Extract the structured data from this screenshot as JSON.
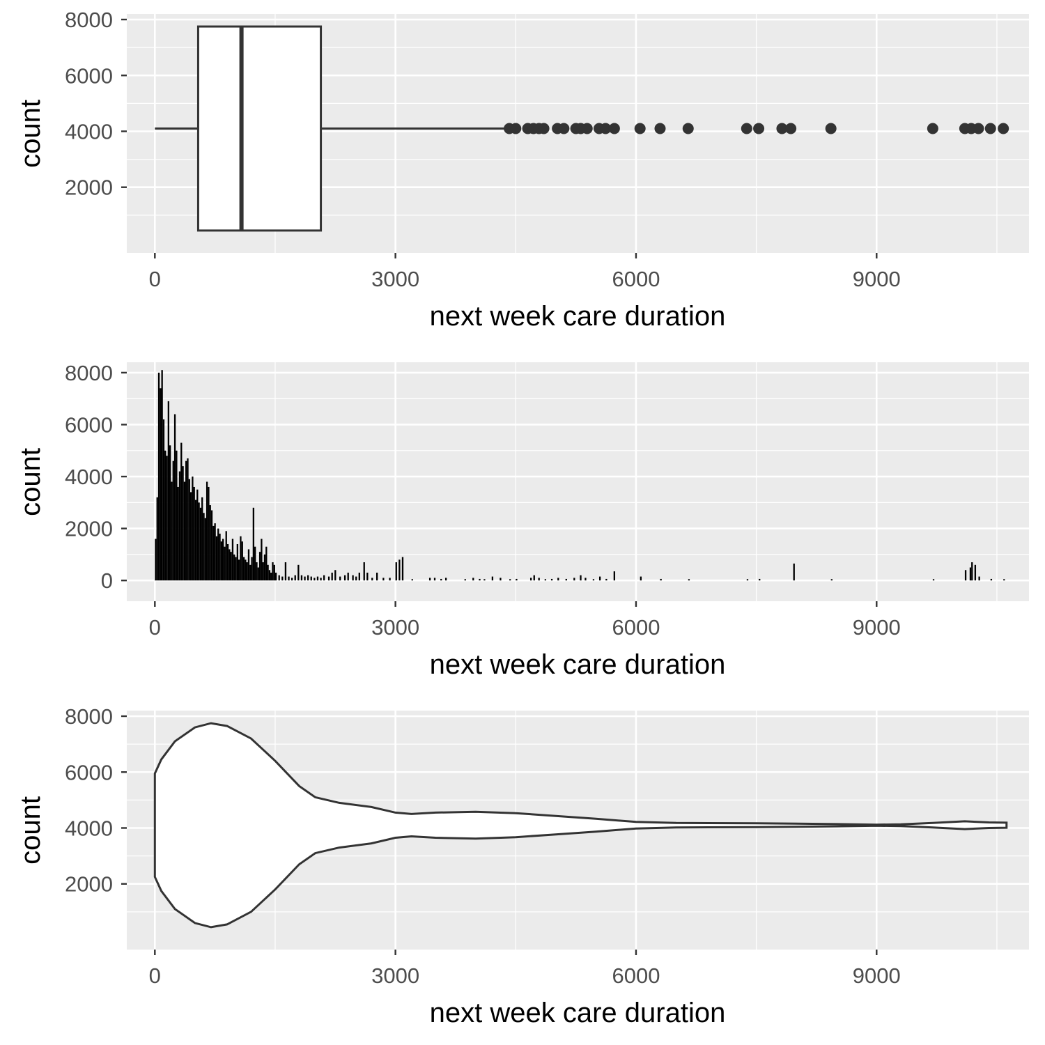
{
  "chart_data": [
    {
      "type": "boxplot",
      "xlabel": "next week care duration",
      "ylabel": "count",
      "xlim": [
        -350,
        10900
      ],
      "ylim": [
        0,
        8000
      ],
      "x_ticks": [
        0,
        3000,
        6000,
        9000
      ],
      "y_ticks": [
        2000,
        4000,
        6000,
        8000
      ],
      "grid": true,
      "box": {
        "lower_whisker": 0,
        "q1": 540,
        "median": 1080,
        "q3": 2070,
        "upper_whisker": 4380,
        "y_center": 4100,
        "y_bottom": 450,
        "y_top": 7750
      },
      "outliers": [
        4420,
        4500,
        4650,
        4720,
        4790,
        4850,
        5020,
        5100,
        5250,
        5310,
        5390,
        5540,
        5620,
        5730,
        6050,
        6300,
        6650,
        7380,
        7530,
        7820,
        7930,
        8430,
        9700,
        10100,
        10180,
        10270,
        10420,
        10580
      ]
    },
    {
      "type": "bar",
      "xlabel": "next week care duration",
      "ylabel": "count",
      "xlim": [
        -350,
        10900
      ],
      "ylim": [
        0,
        8000
      ],
      "x_ticks": [
        0,
        3000,
        6000,
        9000
      ],
      "y_ticks": [
        0,
        2000,
        4000,
        6000,
        8000
      ],
      "grid": true,
      "bins": [
        [
          0,
          1600
        ],
        [
          20,
          3200
        ],
        [
          40,
          8000
        ],
        [
          60,
          7400
        ],
        [
          80,
          8100
        ],
        [
          100,
          6200
        ],
        [
          120,
          5000
        ],
        [
          140,
          4800
        ],
        [
          160,
          6900
        ],
        [
          180,
          5200
        ],
        [
          200,
          3800
        ],
        [
          220,
          4600
        ],
        [
          240,
          6400
        ],
        [
          260,
          5000
        ],
        [
          280,
          3600
        ],
        [
          300,
          4200
        ],
        [
          320,
          5300
        ],
        [
          340,
          4400
        ],
        [
          360,
          3800
        ],
        [
          380,
          4600
        ],
        [
          400,
          4700
        ],
        [
          420,
          3900
        ],
        [
          440,
          3400
        ],
        [
          460,
          4000
        ],
        [
          480,
          3600
        ],
        [
          500,
          3100
        ],
        [
          520,
          3500
        ],
        [
          540,
          3000
        ],
        [
          560,
          2800
        ],
        [
          580,
          3200
        ],
        [
          600,
          2600
        ],
        [
          620,
          2400
        ],
        [
          640,
          3800
        ],
        [
          660,
          3600
        ],
        [
          680,
          2900
        ],
        [
          700,
          2700
        ],
        [
          720,
          2100
        ],
        [
          740,
          2200
        ],
        [
          760,
          1700
        ],
        [
          780,
          2000
        ],
        [
          800,
          1800
        ],
        [
          820,
          1500
        ],
        [
          840,
          1600
        ],
        [
          860,
          1300
        ],
        [
          880,
          1900
        ],
        [
          900,
          1400
        ],
        [
          920,
          1200
        ],
        [
          940,
          1100
        ],
        [
          960,
          1600
        ],
        [
          980,
          1000
        ],
        [
          1000,
          900
        ],
        [
          1020,
          1400
        ],
        [
          1040,
          800
        ],
        [
          1060,
          1700
        ],
        [
          1080,
          1500
        ],
        [
          1100,
          900
        ],
        [
          1120,
          800
        ],
        [
          1140,
          700
        ],
        [
          1160,
          1200
        ],
        [
          1180,
          600
        ],
        [
          1200,
          900
        ],
        [
          1220,
          2800
        ],
        [
          1240,
          1300
        ],
        [
          1260,
          700
        ],
        [
          1280,
          500
        ],
        [
          1300,
          1100
        ],
        [
          1320,
          1600
        ],
        [
          1340,
          700
        ],
        [
          1360,
          1000
        ],
        [
          1380,
          1300
        ],
        [
          1400,
          600
        ],
        [
          1420,
          400
        ],
        [
          1440,
          300
        ],
        [
          1460,
          700
        ],
        [
          1480,
          600
        ],
        [
          1500,
          300
        ],
        [
          1540,
          200
        ],
        [
          1580,
          150
        ],
        [
          1620,
          700
        ],
        [
          1660,
          150
        ],
        [
          1700,
          100
        ],
        [
          1740,
          200
        ],
        [
          1780,
          600
        ],
        [
          1820,
          200
        ],
        [
          1860,
          150
        ],
        [
          1900,
          200
        ],
        [
          1940,
          150
        ],
        [
          1980,
          100
        ],
        [
          2020,
          150
        ],
        [
          2060,
          100
        ],
        [
          2100,
          200
        ],
        [
          2160,
          150
        ],
        [
          2200,
          300
        ],
        [
          2240,
          400
        ],
        [
          2300,
          150
        ],
        [
          2360,
          200
        ],
        [
          2400,
          300
        ],
        [
          2460,
          200
        ],
        [
          2500,
          150
        ],
        [
          2540,
          300
        ],
        [
          2600,
          700
        ],
        [
          2640,
          300
        ],
        [
          2700,
          100
        ],
        [
          2760,
          300
        ],
        [
          2840,
          100
        ],
        [
          2920,
          100
        ],
        [
          3000,
          700
        ],
        [
          3040,
          800
        ],
        [
          3080,
          900
        ],
        [
          3200,
          50
        ],
        [
          3420,
          100
        ],
        [
          3480,
          100
        ],
        [
          3560,
          60
        ],
        [
          3620,
          100
        ],
        [
          3860,
          50
        ],
        [
          3960,
          100
        ],
        [
          4040,
          60
        ],
        [
          4100,
          50
        ],
        [
          4200,
          150
        ],
        [
          4300,
          100
        ],
        [
          4420,
          50
        ],
        [
          4500,
          60
        ],
        [
          4680,
          100
        ],
        [
          4720,
          200
        ],
        [
          4780,
          100
        ],
        [
          4860,
          50
        ],
        [
          4940,
          60
        ],
        [
          5020,
          100
        ],
        [
          5120,
          60
        ],
        [
          5220,
          100
        ],
        [
          5300,
          200
        ],
        [
          5360,
          100
        ],
        [
          5460,
          50
        ],
        [
          5540,
          150
        ],
        [
          5620,
          60
        ],
        [
          5720,
          350
        ],
        [
          6050,
          150
        ],
        [
          6300,
          60
        ],
        [
          6650,
          50
        ],
        [
          7380,
          50
        ],
        [
          7530,
          60
        ],
        [
          7960,
          650
        ],
        [
          8430,
          50
        ],
        [
          9700,
          50
        ],
        [
          10100,
          400
        ],
        [
          10160,
          500
        ],
        [
          10180,
          700
        ],
        [
          10220,
          600
        ],
        [
          10270,
          150
        ],
        [
          10420,
          60
        ],
        [
          10580,
          50
        ]
      ]
    },
    {
      "type": "violin",
      "xlabel": "next week care duration",
      "ylabel": "count",
      "xlim": [
        -350,
        10900
      ],
      "ylim": [
        0,
        8000
      ],
      "x_ticks": [
        0,
        3000,
        6000,
        9000
      ],
      "y_ticks": [
        2000,
        4000,
        6000,
        8000
      ],
      "grid": true,
      "y_center": 4100,
      "x_min": 0,
      "x_max": 10620,
      "half_width": [
        [
          0,
          1850
        ],
        [
          80,
          2350
        ],
        [
          250,
          3000
        ],
        [
          500,
          3500
        ],
        [
          700,
          3650
        ],
        [
          900,
          3550
        ],
        [
          1200,
          3100
        ],
        [
          1500,
          2300
        ],
        [
          1800,
          1400
        ],
        [
          2000,
          1000
        ],
        [
          2300,
          800
        ],
        [
          2700,
          650
        ],
        [
          3000,
          450
        ],
        [
          3200,
          400
        ],
        [
          3500,
          450
        ],
        [
          4000,
          480
        ],
        [
          4500,
          430
        ],
        [
          5000,
          330
        ],
        [
          5500,
          230
        ],
        [
          6000,
          120
        ],
        [
          6500,
          80
        ],
        [
          7500,
          70
        ],
        [
          8500,
          40
        ],
        [
          9000,
          20
        ],
        [
          9300,
          30
        ],
        [
          9700,
          80
        ],
        [
          10100,
          140
        ],
        [
          10400,
          100
        ],
        [
          10620,
          90
        ]
      ]
    }
  ]
}
